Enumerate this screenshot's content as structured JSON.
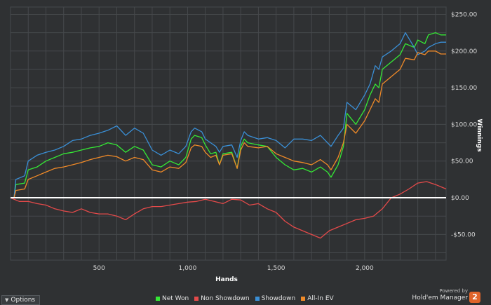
{
  "chart_data": {
    "type": "line",
    "xlabel": "Hands",
    "ylabel": "Winnings",
    "xlim": [
      0,
      2460
    ],
    "ylim": [
      -85,
      260
    ],
    "x_ticks": [
      500,
      1000,
      1500,
      2000
    ],
    "x_tick_labels": [
      "500",
      "1,000",
      "1,500",
      "2,000"
    ],
    "y_ticks": [
      250,
      200,
      150,
      100,
      50,
      0,
      -50
    ],
    "y_tick_labels": [
      "$250.00",
      "$200.00",
      "$150.00",
      "$100.00",
      "$50.00",
      "$0.00",
      "-$50.00"
    ],
    "legend_position": "bottom",
    "series": [
      {
        "name": "Net Won",
        "color": "#35e835",
        "points": [
          [
            0,
            0
          ],
          [
            20,
            0
          ],
          [
            30,
            18
          ],
          [
            80,
            20
          ],
          [
            100,
            38
          ],
          [
            150,
            42
          ],
          [
            200,
            50
          ],
          [
            250,
            55
          ],
          [
            300,
            60
          ],
          [
            350,
            62
          ],
          [
            400,
            65
          ],
          [
            450,
            68
          ],
          [
            500,
            70
          ],
          [
            550,
            75
          ],
          [
            600,
            72
          ],
          [
            650,
            62
          ],
          [
            700,
            70
          ],
          [
            750,
            65
          ],
          [
            800,
            45
          ],
          [
            850,
            42
          ],
          [
            900,
            50
          ],
          [
            950,
            45
          ],
          [
            990,
            55
          ],
          [
            1020,
            80
          ],
          [
            1040,
            85
          ],
          [
            1080,
            82
          ],
          [
            1100,
            72
          ],
          [
            1130,
            60
          ],
          [
            1160,
            62
          ],
          [
            1180,
            45
          ],
          [
            1200,
            60
          ],
          [
            1250,
            62
          ],
          [
            1280,
            40
          ],
          [
            1300,
            70
          ],
          [
            1320,
            80
          ],
          [
            1340,
            75
          ],
          [
            1400,
            72
          ],
          [
            1450,
            70
          ],
          [
            1500,
            55
          ],
          [
            1550,
            45
          ],
          [
            1600,
            38
          ],
          [
            1650,
            40
          ],
          [
            1700,
            35
          ],
          [
            1750,
            42
          ],
          [
            1790,
            35
          ],
          [
            1810,
            28
          ],
          [
            1850,
            45
          ],
          [
            1880,
            70
          ],
          [
            1900,
            115
          ],
          [
            1950,
            100
          ],
          [
            2000,
            120
          ],
          [
            2030,
            140
          ],
          [
            2060,
            155
          ],
          [
            2080,
            150
          ],
          [
            2100,
            175
          ],
          [
            2150,
            185
          ],
          [
            2200,
            195
          ],
          [
            2230,
            210
          ],
          [
            2280,
            205
          ],
          [
            2300,
            215
          ],
          [
            2340,
            210
          ],
          [
            2360,
            222
          ],
          [
            2400,
            225
          ],
          [
            2430,
            222
          ],
          [
            2460,
            222
          ]
        ]
      },
      {
        "name": "Non Showdown",
        "color": "#e44a4a",
        "points": [
          [
            0,
            0
          ],
          [
            50,
            -5
          ],
          [
            100,
            -5
          ],
          [
            150,
            -8
          ],
          [
            200,
            -10
          ],
          [
            250,
            -15
          ],
          [
            300,
            -18
          ],
          [
            350,
            -20
          ],
          [
            400,
            -15
          ],
          [
            450,
            -20
          ],
          [
            500,
            -22
          ],
          [
            550,
            -22
          ],
          [
            600,
            -25
          ],
          [
            650,
            -30
          ],
          [
            700,
            -22
          ],
          [
            750,
            -15
          ],
          [
            800,
            -12
          ],
          [
            850,
            -12
          ],
          [
            900,
            -10
          ],
          [
            950,
            -8
          ],
          [
            1000,
            -6
          ],
          [
            1050,
            -5
          ],
          [
            1100,
            -2
          ],
          [
            1150,
            -5
          ],
          [
            1200,
            -8
          ],
          [
            1250,
            -2
          ],
          [
            1300,
            -3
          ],
          [
            1350,
            -10
          ],
          [
            1400,
            -8
          ],
          [
            1450,
            -15
          ],
          [
            1500,
            -20
          ],
          [
            1550,
            -32
          ],
          [
            1600,
            -40
          ],
          [
            1650,
            -45
          ],
          [
            1700,
            -50
          ],
          [
            1750,
            -55
          ],
          [
            1800,
            -45
          ],
          [
            1850,
            -40
          ],
          [
            1900,
            -35
          ],
          [
            1950,
            -30
          ],
          [
            2000,
            -28
          ],
          [
            2050,
            -25
          ],
          [
            2100,
            -15
          ],
          [
            2150,
            0
          ],
          [
            2200,
            5
          ],
          [
            2250,
            12
          ],
          [
            2300,
            20
          ],
          [
            2350,
            22
          ],
          [
            2400,
            18
          ],
          [
            2460,
            12
          ]
        ]
      },
      {
        "name": "Showdown",
        "color": "#3a8fd6",
        "points": [
          [
            0,
            0
          ],
          [
            20,
            0
          ],
          [
            30,
            25
          ],
          [
            80,
            30
          ],
          [
            100,
            50
          ],
          [
            150,
            58
          ],
          [
            200,
            62
          ],
          [
            250,
            65
          ],
          [
            300,
            70
          ],
          [
            350,
            78
          ],
          [
            400,
            80
          ],
          [
            450,
            85
          ],
          [
            500,
            88
          ],
          [
            550,
            92
          ],
          [
            600,
            98
          ],
          [
            650,
            85
          ],
          [
            700,
            95
          ],
          [
            750,
            88
          ],
          [
            800,
            65
          ],
          [
            850,
            58
          ],
          [
            900,
            65
          ],
          [
            950,
            60
          ],
          [
            990,
            70
          ],
          [
            1020,
            90
          ],
          [
            1040,
            95
          ],
          [
            1080,
            90
          ],
          [
            1100,
            80
          ],
          [
            1130,
            75
          ],
          [
            1160,
            70
          ],
          [
            1180,
            62
          ],
          [
            1200,
            70
          ],
          [
            1250,
            72
          ],
          [
            1280,
            55
          ],
          [
            1300,
            78
          ],
          [
            1320,
            90
          ],
          [
            1340,
            85
          ],
          [
            1400,
            80
          ],
          [
            1450,
            82
          ],
          [
            1500,
            78
          ],
          [
            1550,
            68
          ],
          [
            1600,
            80
          ],
          [
            1650,
            80
          ],
          [
            1700,
            78
          ],
          [
            1750,
            85
          ],
          [
            1790,
            75
          ],
          [
            1810,
            70
          ],
          [
            1850,
            85
          ],
          [
            1880,
            95
          ],
          [
            1900,
            130
          ],
          [
            1950,
            120
          ],
          [
            2000,
            140
          ],
          [
            2030,
            155
          ],
          [
            2060,
            180
          ],
          [
            2080,
            175
          ],
          [
            2100,
            192
          ],
          [
            2150,
            200
          ],
          [
            2200,
            210
          ],
          [
            2230,
            225
          ],
          [
            2280,
            205
          ],
          [
            2300,
            195
          ],
          [
            2340,
            200
          ],
          [
            2360,
            205
          ],
          [
            2400,
            210
          ],
          [
            2430,
            212
          ],
          [
            2460,
            212
          ]
        ]
      },
      {
        "name": "All-In EV",
        "color": "#f08a28",
        "points": [
          [
            0,
            0
          ],
          [
            20,
            0
          ],
          [
            30,
            10
          ],
          [
            80,
            12
          ],
          [
            100,
            25
          ],
          [
            150,
            30
          ],
          [
            200,
            35
          ],
          [
            250,
            40
          ],
          [
            300,
            42
          ],
          [
            350,
            45
          ],
          [
            400,
            48
          ],
          [
            450,
            52
          ],
          [
            500,
            55
          ],
          [
            550,
            58
          ],
          [
            600,
            56
          ],
          [
            650,
            50
          ],
          [
            700,
            55
          ],
          [
            750,
            52
          ],
          [
            800,
            38
          ],
          [
            850,
            35
          ],
          [
            900,
            42
          ],
          [
            950,
            40
          ],
          [
            990,
            48
          ],
          [
            1020,
            68
          ],
          [
            1040,
            72
          ],
          [
            1080,
            70
          ],
          [
            1100,
            62
          ],
          [
            1130,
            55
          ],
          [
            1160,
            58
          ],
          [
            1180,
            45
          ],
          [
            1200,
            58
          ],
          [
            1250,
            60
          ],
          [
            1280,
            40
          ],
          [
            1300,
            65
          ],
          [
            1320,
            75
          ],
          [
            1340,
            70
          ],
          [
            1400,
            68
          ],
          [
            1450,
            70
          ],
          [
            1500,
            60
          ],
          [
            1550,
            55
          ],
          [
            1600,
            50
          ],
          [
            1650,
            48
          ],
          [
            1700,
            45
          ],
          [
            1750,
            52
          ],
          [
            1790,
            45
          ],
          [
            1810,
            38
          ],
          [
            1850,
            55
          ],
          [
            1880,
            75
          ],
          [
            1900,
            100
          ],
          [
            1950,
            88
          ],
          [
            2000,
            105
          ],
          [
            2030,
            120
          ],
          [
            2060,
            135
          ],
          [
            2080,
            130
          ],
          [
            2100,
            155
          ],
          [
            2150,
            165
          ],
          [
            2200,
            175
          ],
          [
            2230,
            190
          ],
          [
            2280,
            188
          ],
          [
            2300,
            198
          ],
          [
            2340,
            195
          ],
          [
            2360,
            200
          ],
          [
            2400,
            200
          ],
          [
            2430,
            196
          ],
          [
            2460,
            196
          ]
        ]
      }
    ]
  },
  "ui": {
    "options_label": "Options",
    "powered_by": "Powered by",
    "brand_name": "Hold'em Manager",
    "brand_badge": "2"
  },
  "colors": {
    "background": "#2f3133",
    "grid": "#46494c",
    "zero_line": "#ffffff"
  }
}
